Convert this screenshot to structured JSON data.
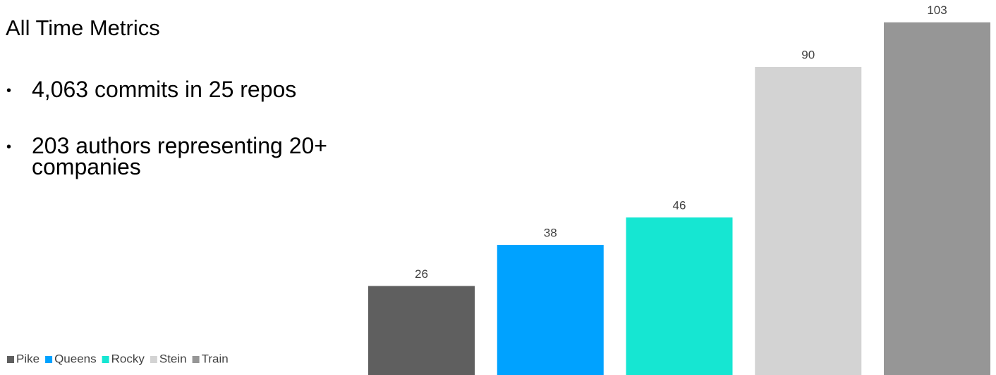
{
  "slide": {
    "title": "All Time Metrics",
    "bullets": [
      "4,063 commits in 25 repos",
      "203 authors representing 20+ companies"
    ]
  },
  "chart_data": {
    "type": "bar",
    "series": [
      {
        "name": "Pike",
        "color": "#5f5f5f",
        "values": [
          26
        ]
      },
      {
        "name": "Queens",
        "color": "#00a2ff",
        "values": [
          38
        ]
      },
      {
        "name": "Rocky",
        "color": "#16e6d2",
        "values": [
          46
        ]
      },
      {
        "name": "Stein",
        "color": "#d3d3d3",
        "values": [
          90
        ]
      },
      {
        "name": "Train",
        "color": "#969696",
        "values": [
          103
        ]
      }
    ],
    "ylim": [
      0,
      105
    ],
    "legend": "bottom-left"
  }
}
